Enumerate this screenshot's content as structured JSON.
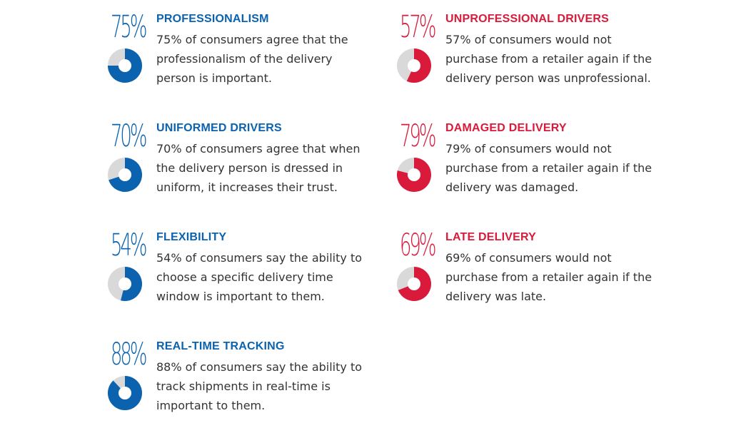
{
  "colors": {
    "blue": "#0b62ae",
    "red": "#d91a3a",
    "track": "#d9d9d9",
    "text": "#333333"
  },
  "chart_data": [
    {
      "type": "pie",
      "value": 75,
      "percent_label": "75%",
      "title": "PROFESSIONALISM",
      "description": "75% of consumers agree that the professionalism of the delivery person is important.",
      "color": "#0b62ae"
    },
    {
      "type": "pie",
      "value": 70,
      "percent_label": "70%",
      "title": "UNIFORMED DRIVERS",
      "description": "70% of consumers agree that when the delivery person is dressed in uniform, it increases their trust.",
      "color": "#0b62ae"
    },
    {
      "type": "pie",
      "value": 54,
      "percent_label": "54%",
      "title": "FLEXIBILITY",
      "description": "54% of consumers say the ability to choose a specific delivery time window is important to them.",
      "color": "#0b62ae"
    },
    {
      "type": "pie",
      "value": 88,
      "percent_label": "88%",
      "title": "REAL-TIME TRACKING",
      "description": "88% of consumers say the ability to track shipments in real-time is important to them.",
      "color": "#0b62ae"
    },
    {
      "type": "pie",
      "value": 57,
      "percent_label": "57%",
      "title": "UNPROFESSIONAL DRIVERS",
      "description": "57% of consumers would not purchase from a retailer again if the delivery person was unprofessional.",
      "color": "#d91a3a"
    },
    {
      "type": "pie",
      "value": 79,
      "percent_label": "79%",
      "title": "DAMAGED DELIVERY",
      "description": "79% of consumers would not purchase from a retailer again if the delivery was damaged.",
      "color": "#d91a3a"
    },
    {
      "type": "pie",
      "value": 69,
      "percent_label": "69%",
      "title": "LATE DELIVERY",
      "description": "69% of consumers would not purchase from a retailer again if the delivery was late.",
      "color": "#d91a3a"
    }
  ]
}
